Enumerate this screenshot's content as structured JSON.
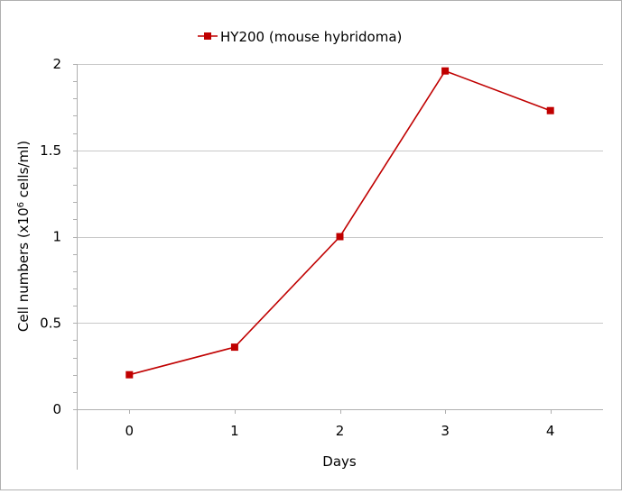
{
  "chart_data": {
    "type": "line",
    "title": "",
    "xlabel": "Days",
    "ylabel": "Cell numbers (x10",
    "ylabel_sup": "6",
    "ylabel_tail": " cells/ml)",
    "x": [
      0,
      1,
      2,
      3,
      4
    ],
    "x_tick_labels": [
      "0",
      "1",
      "2",
      "3",
      "4"
    ],
    "xlim": [
      -0.5,
      4.5
    ],
    "ylim": [
      0,
      2
    ],
    "y_ticks": [
      0,
      0.5,
      1,
      1.5,
      2
    ],
    "y_tick_labels": [
      "0",
      "0.5",
      "1",
      "1.5",
      "2"
    ],
    "y_minor_step": 0.1,
    "grid": "horizontal-major",
    "legend_position": "top-center",
    "series": [
      {
        "name": "HY200 (mouse hybridoma)",
        "color": "#c00000",
        "marker": "square",
        "values": [
          0.2,
          0.36,
          1.0,
          1.96,
          1.73
        ]
      }
    ]
  }
}
